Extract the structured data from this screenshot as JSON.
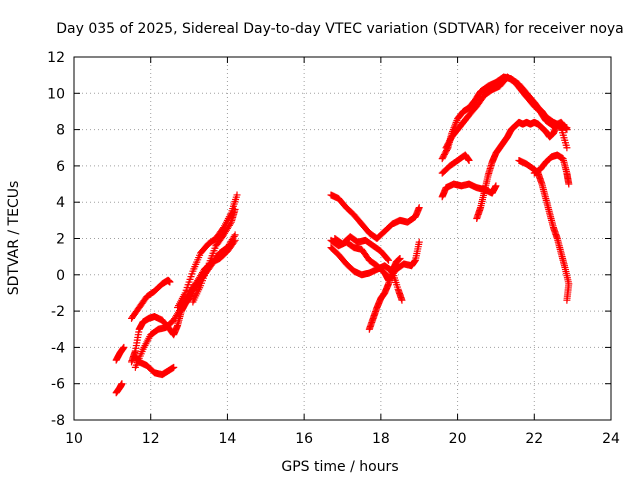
{
  "chart_data": {
    "type": "scatter",
    "title": "Day 035 of 2025, Sidereal Day-to-day VTEC variation (SDTVAR) for receiver noya",
    "xlabel": "GPS time / hours",
    "ylabel": "SDTVAR / TECUs",
    "xlim": [
      10,
      24
    ],
    "ylim": [
      -8,
      12
    ],
    "xticks": [
      10,
      12,
      14,
      16,
      18,
      20,
      22,
      24
    ],
    "yticks": [
      -8,
      -6,
      -4,
      -2,
      0,
      2,
      4,
      6,
      8,
      10,
      12
    ],
    "grid": true,
    "marker": "plus",
    "color": "#ff0000",
    "series": [
      {
        "name": "trace-1",
        "points": [
          [
            11.1,
            -6.5
          ],
          [
            11.2,
            -6.2
          ],
          [
            11.25,
            -6.0
          ]
        ]
      },
      {
        "name": "trace-2",
        "points": [
          [
            11.1,
            -4.7
          ],
          [
            11.2,
            -4.3
          ],
          [
            11.3,
            -4.0
          ]
        ]
      },
      {
        "name": "trace-3",
        "points": [
          [
            11.5,
            -4.8
          ],
          [
            11.6,
            -4.2
          ],
          [
            11.7,
            -3.0
          ],
          [
            11.8,
            -2.6
          ],
          [
            11.95,
            -2.4
          ],
          [
            12.1,
            -2.3
          ],
          [
            12.3,
            -2.5
          ],
          [
            12.5,
            -3.0
          ],
          [
            12.6,
            -3.3
          ],
          [
            12.7,
            -2.8
          ],
          [
            12.8,
            -2.0
          ],
          [
            12.9,
            -1.6
          ],
          [
            13.0,
            -1.3
          ],
          [
            13.2,
            -0.6
          ],
          [
            13.4,
            0.0
          ],
          [
            13.6,
            0.6
          ],
          [
            13.8,
            1.2
          ],
          [
            14.0,
            1.5
          ],
          [
            14.2,
            2.2
          ]
        ]
      },
      {
        "name": "trace-4",
        "points": [
          [
            11.5,
            -2.4
          ],
          [
            11.7,
            -1.8
          ],
          [
            11.9,
            -1.2
          ],
          [
            12.1,
            -0.9
          ],
          [
            12.3,
            -0.5
          ],
          [
            12.45,
            -0.3
          ],
          [
            12.5,
            -0.4
          ]
        ]
      },
      {
        "name": "trace-5",
        "points": [
          [
            11.6,
            -4.5
          ],
          [
            11.7,
            -4.8
          ],
          [
            11.9,
            -5.0
          ],
          [
            12.1,
            -5.4
          ],
          [
            12.3,
            -5.5
          ],
          [
            12.45,
            -5.3
          ],
          [
            12.6,
            -5.1
          ]
        ]
      },
      {
        "name": "trace-6",
        "points": [
          [
            11.6,
            -5.1
          ],
          [
            11.8,
            -4.1
          ],
          [
            12.0,
            -3.3
          ],
          [
            12.2,
            -3.0
          ],
          [
            12.4,
            -2.9
          ],
          [
            12.6,
            -2.5
          ],
          [
            12.8,
            -1.8
          ],
          [
            13.0,
            -1.0
          ],
          [
            13.2,
            -0.4
          ],
          [
            13.4,
            0.3
          ],
          [
            13.6,
            0.7
          ],
          [
            13.8,
            0.9
          ],
          [
            14.0,
            1.3
          ],
          [
            14.2,
            1.9
          ]
        ]
      },
      {
        "name": "trace-7",
        "points": [
          [
            12.7,
            -1.8
          ],
          [
            12.9,
            -1.0
          ],
          [
            13.1,
            0.2
          ],
          [
            13.3,
            1.2
          ],
          [
            13.5,
            1.7
          ],
          [
            13.7,
            2.0
          ],
          [
            13.9,
            2.6
          ],
          [
            14.1,
            3.4
          ],
          [
            14.25,
            4.4
          ]
        ]
      },
      {
        "name": "trace-8",
        "points": [
          [
            13.1,
            -1.5
          ],
          [
            13.3,
            -0.6
          ],
          [
            13.5,
            0.5
          ],
          [
            13.7,
            1.6
          ],
          [
            13.9,
            2.2
          ],
          [
            14.1,
            2.9
          ],
          [
            14.2,
            3.6
          ]
        ]
      },
      {
        "name": "trace-9",
        "points": [
          [
            16.7,
            4.4
          ],
          [
            16.9,
            4.2
          ],
          [
            17.1,
            3.7
          ],
          [
            17.3,
            3.3
          ],
          [
            17.5,
            2.8
          ],
          [
            17.7,
            2.3
          ],
          [
            17.9,
            2.0
          ],
          [
            18.1,
            2.4
          ],
          [
            18.3,
            2.8
          ],
          [
            18.5,
            3.0
          ],
          [
            18.7,
            2.9
          ],
          [
            18.9,
            3.2
          ],
          [
            19.0,
            3.7
          ]
        ]
      },
      {
        "name": "trace-10",
        "points": [
          [
            16.7,
            1.9
          ],
          [
            16.9,
            1.6
          ],
          [
            17.1,
            1.8
          ],
          [
            17.3,
            1.5
          ],
          [
            17.5,
            1.4
          ],
          [
            17.7,
            0.8
          ],
          [
            17.9,
            0.5
          ],
          [
            18.1,
            0.1
          ],
          [
            18.2,
            -0.3
          ],
          [
            18.4,
            0.3
          ],
          [
            18.6,
            0.6
          ],
          [
            18.8,
            0.5
          ],
          [
            18.9,
            0.8
          ],
          [
            19.0,
            1.8
          ]
        ]
      },
      {
        "name": "trace-11",
        "points": [
          [
            16.7,
            1.5
          ],
          [
            16.9,
            1.1
          ],
          [
            17.1,
            0.6
          ],
          [
            17.3,
            0.2
          ],
          [
            17.5,
            0.0
          ],
          [
            17.7,
            0.1
          ],
          [
            17.9,
            0.3
          ],
          [
            18.1,
            0.5
          ],
          [
            18.3,
            0.2
          ],
          [
            18.45,
            -0.8
          ],
          [
            18.55,
            -1.4
          ]
        ]
      },
      {
        "name": "trace-12",
        "points": [
          [
            16.8,
            2.0
          ],
          [
            17.0,
            1.7
          ],
          [
            17.2,
            2.1
          ],
          [
            17.4,
            1.8
          ],
          [
            17.6,
            1.9
          ],
          [
            17.8,
            1.6
          ],
          [
            18.0,
            1.3
          ],
          [
            18.2,
            0.8
          ]
        ]
      },
      {
        "name": "trace-13",
        "points": [
          [
            17.7,
            -3.0
          ],
          [
            17.8,
            -2.4
          ],
          [
            17.9,
            -1.8
          ],
          [
            18.0,
            -1.3
          ],
          [
            18.1,
            -1.0
          ],
          [
            18.2,
            -0.5
          ],
          [
            18.3,
            0.2
          ],
          [
            18.4,
            0.7
          ],
          [
            18.5,
            0.9
          ]
        ]
      },
      {
        "name": "trace-14",
        "points": [
          [
            19.6,
            4.3
          ],
          [
            19.7,
            4.8
          ],
          [
            19.9,
            5.0
          ],
          [
            20.1,
            4.9
          ],
          [
            20.3,
            5.0
          ],
          [
            20.5,
            4.8
          ],
          [
            20.7,
            4.7
          ],
          [
            20.9,
            4.5
          ],
          [
            21.0,
            4.9
          ]
        ]
      },
      {
        "name": "trace-15",
        "points": [
          [
            19.6,
            5.6
          ],
          [
            19.8,
            6.0
          ],
          [
            20.0,
            6.3
          ],
          [
            20.2,
            6.6
          ],
          [
            20.3,
            6.3
          ]
        ]
      },
      {
        "name": "trace-16",
        "points": [
          [
            19.6,
            6.4
          ],
          [
            19.75,
            7.0
          ],
          [
            19.85,
            7.8
          ],
          [
            20.0,
            8.6
          ],
          [
            20.15,
            9.0
          ],
          [
            20.3,
            9.2
          ],
          [
            20.45,
            9.6
          ],
          [
            20.6,
            10.1
          ],
          [
            20.8,
            10.4
          ],
          [
            21.0,
            10.6
          ],
          [
            21.2,
            10.9
          ],
          [
            21.4,
            10.8
          ],
          [
            21.6,
            10.5
          ],
          [
            21.8,
            10.0
          ],
          [
            22.0,
            9.5
          ],
          [
            22.1,
            9.2
          ],
          [
            22.2,
            9.0
          ],
          [
            22.3,
            8.7
          ],
          [
            22.5,
            8.4
          ],
          [
            22.7,
            8.2
          ],
          [
            22.85,
            8.1
          ]
        ]
      },
      {
        "name": "trace-17",
        "points": [
          [
            19.7,
            7.0
          ],
          [
            19.85,
            7.6
          ],
          [
            20.0,
            8.0
          ],
          [
            20.15,
            8.4
          ],
          [
            20.3,
            8.8
          ],
          [
            20.5,
            9.3
          ],
          [
            20.7,
            9.9
          ],
          [
            20.9,
            10.2
          ],
          [
            21.1,
            10.4
          ],
          [
            21.3,
            10.9
          ],
          [
            21.5,
            10.6
          ],
          [
            21.65,
            10.2
          ],
          [
            21.8,
            9.8
          ],
          [
            22.0,
            9.3
          ],
          [
            22.15,
            9.0
          ],
          [
            22.3,
            8.5
          ],
          [
            22.5,
            8.2
          ],
          [
            22.7,
            8.4
          ],
          [
            22.85,
            8.0
          ]
        ]
      },
      {
        "name": "trace-18",
        "points": [
          [
            20.5,
            3.1
          ],
          [
            20.6,
            3.7
          ],
          [
            20.7,
            4.6
          ],
          [
            20.8,
            5.5
          ],
          [
            20.9,
            6.2
          ],
          [
            21.0,
            6.7
          ],
          [
            21.1,
            7.0
          ],
          [
            21.2,
            7.3
          ],
          [
            21.3,
            7.6
          ],
          [
            21.4,
            8.0
          ],
          [
            21.5,
            8.2
          ],
          [
            21.6,
            8.4
          ],
          [
            21.7,
            8.3
          ],
          [
            21.8,
            8.4
          ],
          [
            21.9,
            8.3
          ],
          [
            22.0,
            8.4
          ],
          [
            22.1,
            8.3
          ],
          [
            22.2,
            8.1
          ],
          [
            22.3,
            7.9
          ],
          [
            22.4,
            7.6
          ],
          [
            22.5,
            7.8
          ],
          [
            22.6,
            8.3
          ],
          [
            22.7,
            8.1
          ],
          [
            22.85,
            7.0
          ]
        ]
      },
      {
        "name": "trace-19",
        "points": [
          [
            21.6,
            6.3
          ],
          [
            21.8,
            6.1
          ],
          [
            22.0,
            5.8
          ],
          [
            22.1,
            5.6
          ],
          [
            22.2,
            5.0
          ],
          [
            22.3,
            4.2
          ],
          [
            22.4,
            3.4
          ],
          [
            22.5,
            2.6
          ],
          [
            22.6,
            2.0
          ],
          [
            22.7,
            1.2
          ],
          [
            22.8,
            0.4
          ],
          [
            22.9,
            -0.5
          ],
          [
            22.85,
            -1.4
          ]
        ]
      },
      {
        "name": "trace-20",
        "points": [
          [
            22.0,
            5.6
          ],
          [
            22.15,
            5.8
          ],
          [
            22.3,
            6.2
          ],
          [
            22.45,
            6.5
          ],
          [
            22.6,
            6.6
          ],
          [
            22.75,
            6.4
          ],
          [
            22.85,
            5.6
          ],
          [
            22.9,
            5.0
          ]
        ]
      }
    ]
  }
}
